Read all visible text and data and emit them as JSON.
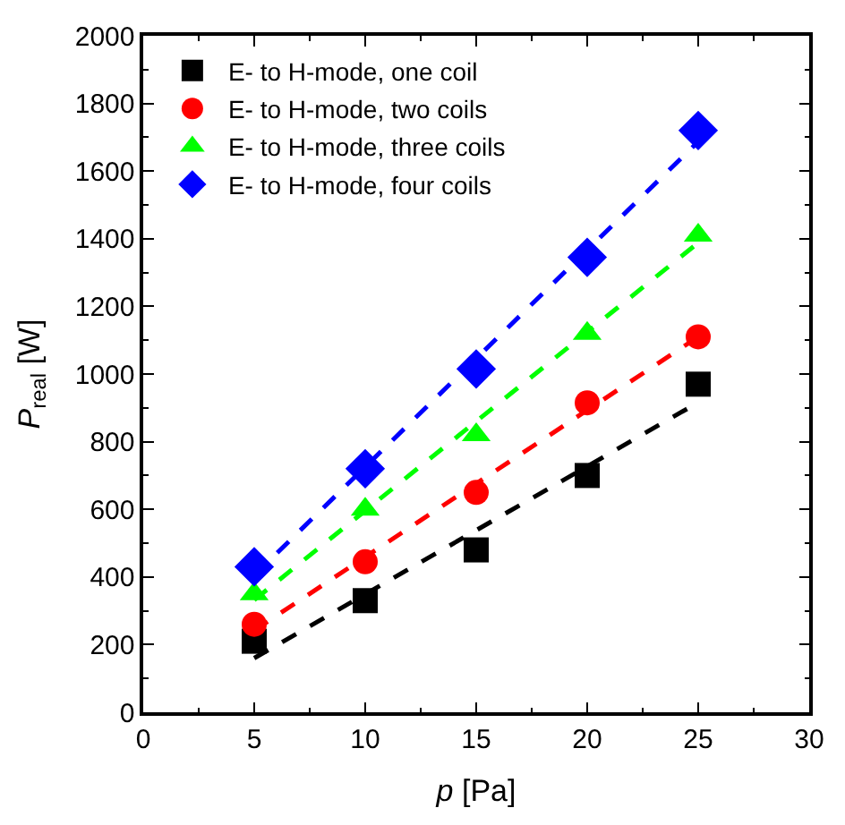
{
  "chart_data": {
    "type": "scatter",
    "xlabel": "p [Pa]",
    "ylabel": "P$_{real}$ [W]",
    "xlim": [
      0,
      30
    ],
    "xticks": [
      0,
      5,
      10,
      15,
      20,
      25,
      30
    ],
    "ylim": [
      0,
      2000
    ],
    "yticks": [
      0,
      200,
      400,
      600,
      800,
      1000,
      1200,
      1400,
      1600,
      1800,
      2000
    ],
    "legend": "top left",
    "series": [
      {
        "name": "E- to H-mode, one coil",
        "color": "#000000",
        "marker": "square",
        "x": [
          5,
          10,
          15,
          20,
          25
        ],
        "values": [
          210,
          330,
          480,
          700,
          970
        ]
      },
      {
        "name": "E- to H-mode, two coils",
        "color": "#ff0000",
        "marker": "circle",
        "x": [
          5,
          10,
          15,
          20,
          25
        ],
        "values": [
          260,
          445,
          650,
          915,
          1110
        ]
      },
      {
        "name": "E- to H-mode, three coils",
        "color": "#00ff00",
        "marker": "triangle",
        "x": [
          5,
          10,
          15,
          20,
          25
        ],
        "values": [
          350,
          600,
          820,
          1120,
          1410
        ]
      },
      {
        "name": "E- to H-mode, four coils",
        "color": "#0000ff",
        "marker": "diamond",
        "x": [
          5,
          10,
          15,
          20,
          25
        ],
        "values": [
          430,
          720,
          1015,
          1345,
          1720
        ]
      },
      {
        "type": "line",
        "color": "#000000",
        "line_style": "dashed",
        "marker": "none",
        "x": [
          5,
          25
        ],
        "values": [
          160,
          916
        ]
      },
      {
        "type": "line",
        "color": "#ff0000",
        "line_style": "dashed",
        "marker": "none",
        "x": [
          5,
          25
        ],
        "values": [
          242,
          1110
        ]
      },
      {
        "type": "line",
        "color": "#00ff00",
        "line_style": "dashed",
        "marker": "none",
        "x": [
          5,
          25
        ],
        "values": [
          332,
          1388
        ]
      },
      {
        "type": "line",
        "color": "#0000ff",
        "line_style": "dashed",
        "marker": "none",
        "x": [
          5,
          25
        ],
        "values": [
          405,
          1687
        ]
      }
    ]
  }
}
